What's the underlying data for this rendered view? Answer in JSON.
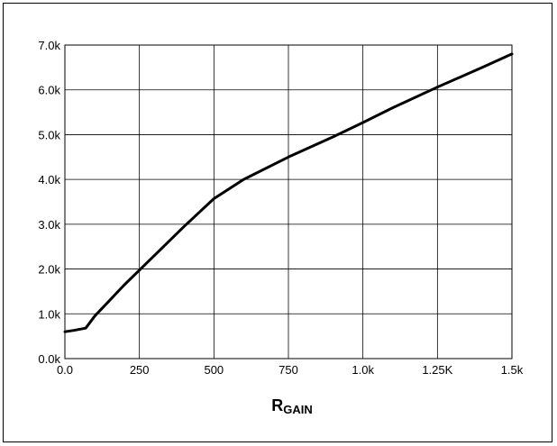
{
  "chart_data": {
    "type": "line",
    "title": "",
    "xlabel_main": "R",
    "xlabel_sub": "GAIN",
    "ylabel": "",
    "xlim": [
      0,
      1500
    ],
    "ylim": [
      0,
      7000
    ],
    "grid": true,
    "x_ticks": [
      {
        "value": 0,
        "label": "0.0"
      },
      {
        "value": 250,
        "label": "250"
      },
      {
        "value": 500,
        "label": "500"
      },
      {
        "value": 750,
        "label": "750"
      },
      {
        "value": 1000,
        "label": "1.0k"
      },
      {
        "value": 1250,
        "label": "1.25K"
      },
      {
        "value": 1500,
        "label": "1.5k"
      }
    ],
    "y_ticks": [
      {
        "value": 0,
        "label": "0.0k"
      },
      {
        "value": 1000,
        "label": "1.0k"
      },
      {
        "value": 2000,
        "label": "2.0k"
      },
      {
        "value": 3000,
        "label": "3.0k"
      },
      {
        "value": 4000,
        "label": "4.0k"
      },
      {
        "value": 5000,
        "label": "5.0k"
      },
      {
        "value": 6000,
        "label": "6.0k"
      },
      {
        "value": 7000,
        "label": "7.0k"
      }
    ],
    "series": [
      {
        "color": "#000000",
        "x": [
          0,
          30,
          70,
          100,
          200,
          300,
          400,
          500,
          600,
          750,
          900,
          1000,
          1100,
          1250,
          1400,
          1500
        ],
        "y": [
          600,
          630,
          680,
          950,
          1650,
          2300,
          2950,
          3570,
          4000,
          4500,
          4950,
          5270,
          5600,
          6060,
          6500,
          6800
        ]
      }
    ]
  }
}
